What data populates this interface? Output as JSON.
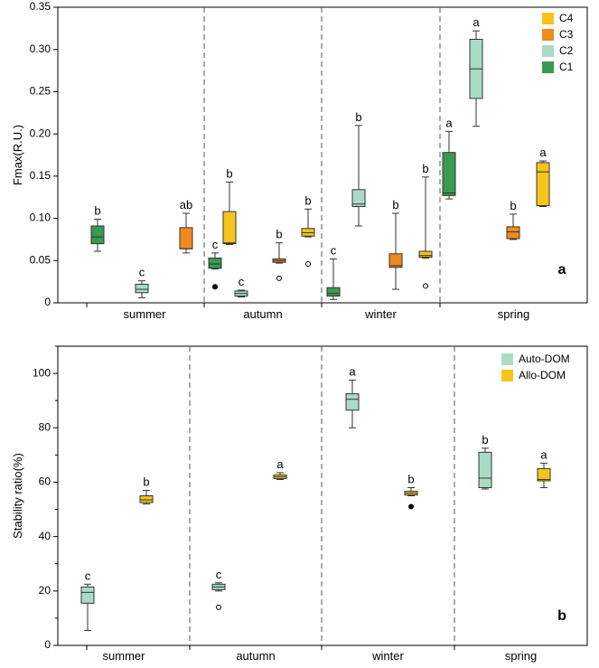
{
  "colors": {
    "C1": "#3a9a4f",
    "C2": "#a9dcc5",
    "C3": "#f08a1e",
    "C4": "#f7c41b",
    "Auto-DOM": "#a9dcc5",
    "Allo-DOM": "#f7c41b"
  },
  "chart_data": [
    {
      "type": "box",
      "panel_label": "a",
      "ylabel": "Fmax(R.U.)",
      "xlabel": "",
      "ylim": [
        0,
        0.35
      ],
      "yticks": [
        "0",
        "0.05",
        "0.10",
        "0.15",
        "0.20",
        "0.25",
        "0.30",
        "0.35"
      ],
      "categories": [
        "summer",
        "autumn",
        "winter",
        "spring"
      ],
      "legend": {
        "position": "top-right",
        "entries": [
          "C4",
          "C3",
          "C2",
          "C1"
        ]
      },
      "series": [
        {
          "name": "C1",
          "values": [
            {
              "whislo": 0.061,
              "q1": 0.07,
              "med": 0.078,
              "q3": 0.091,
              "whishi": 0.099,
              "fliers": [],
              "label": "b"
            },
            {
              "whislo": 0.04,
              "q1": 0.041,
              "med": 0.046,
              "q3": 0.053,
              "whishi": 0.059,
              "fliers": [
                {
                  "v": 0.019,
                  "filled": true
                }
              ],
              "label": "c"
            },
            {
              "whislo": 0.004,
              "q1": 0.008,
              "med": 0.011,
              "q3": 0.018,
              "whishi": 0.052,
              "fliers": [],
              "label": "c"
            },
            {
              "whislo": 0.123,
              "q1": 0.127,
              "med": 0.13,
              "q3": 0.178,
              "whishi": 0.203,
              "fliers": [],
              "label": "a"
            }
          ]
        },
        {
          "name": "C2",
          "values": [
            {
              "whislo": 0.006,
              "q1": 0.012,
              "med": 0.016,
              "q3": 0.022,
              "whishi": 0.026,
              "fliers": [],
              "label": "c"
            },
            {
              "whislo": 0.007,
              "q1": 0.008,
              "med": 0.011,
              "q3": 0.014,
              "whishi": 0.015,
              "fliers": [],
              "label": "c"
            },
            {
              "whislo": 0.091,
              "q1": 0.114,
              "med": 0.117,
              "q3": 0.134,
              "whishi": 0.21,
              "fliers": [],
              "label": "b"
            },
            {
              "whislo": 0.209,
              "q1": 0.242,
              "med": 0.277,
              "q3": 0.312,
              "whishi": 0.322,
              "fliers": [],
              "label": "a"
            }
          ]
        },
        {
          "name": "C3",
          "values": [
            {
              "whislo": 0.059,
              "q1": 0.064,
              "med": 0.064,
              "q3": 0.089,
              "whishi": 0.106,
              "fliers": [],
              "label": "ab"
            },
            {
              "whislo": 0.047,
              "q1": 0.048,
              "med": 0.05,
              "q3": 0.052,
              "whishi": 0.071,
              "fliers": [
                {
                  "v": 0.029,
                  "filled": false
                }
              ],
              "label": "b"
            },
            {
              "whislo": 0.016,
              "q1": 0.042,
              "med": 0.044,
              "q3": 0.058,
              "whishi": 0.106,
              "fliers": [],
              "label": "b"
            },
            {
              "whislo": 0.075,
              "q1": 0.076,
              "med": 0.084,
              "q3": 0.09,
              "whishi": 0.105,
              "fliers": [],
              "label": "b"
            }
          ]
        },
        {
          "name": "C4",
          "values": [
            {
              "whislo": 0.069,
              "q1": 0.07,
              "med": 0.071,
              "q3": 0.108,
              "whishi": 0.143,
              "fliers": [],
              "label": "b"
            },
            {
              "whislo": 0.078,
              "q1": 0.079,
              "med": 0.083,
              "q3": 0.088,
              "whishi": 0.111,
              "fliers": [
                {
                  "v": 0.046,
                  "filled": false
                }
              ],
              "label": "b"
            },
            {
              "whislo": 0.053,
              "q1": 0.054,
              "med": 0.056,
              "q3": 0.061,
              "whishi": 0.149,
              "fliers": [
                {
                  "v": 0.02,
                  "filled": false
                }
              ],
              "label": "b"
            },
            {
              "whislo": 0.114,
              "q1": 0.115,
              "med": 0.155,
              "q3": 0.166,
              "whishi": 0.168,
              "fliers": [],
              "label": "a"
            }
          ]
        }
      ]
    },
    {
      "type": "box",
      "panel_label": "b",
      "ylabel": "Stability ratio(%)",
      "xlabel": "",
      "ylim": [
        0,
        110
      ],
      "yticks": [
        "0",
        "20",
        "40",
        "60",
        "80",
        "100"
      ],
      "categories": [
        "summer",
        "autumn",
        "winter",
        "spring"
      ],
      "legend": {
        "position": "top-right",
        "entries": [
          "Auto-DOM",
          "Allo-DOM"
        ]
      },
      "series": [
        {
          "name": "Auto-DOM",
          "values": [
            {
              "whislo": 5.5,
              "q1": 15.5,
              "med": 19.5,
              "q3": 21.5,
              "whishi": 22.5,
              "fliers": [],
              "label": "c"
            },
            {
              "whislo": 20.0,
              "q1": 20.5,
              "med": 21.5,
              "q3": 22.5,
              "whishi": 23.0,
              "fliers": [
                {
                  "v": 14.0,
                  "filled": false
                }
              ],
              "label": "c"
            },
            {
              "whislo": 80.0,
              "q1": 86.5,
              "med": 90.5,
              "q3": 92.5,
              "whishi": 97.5,
              "fliers": [],
              "label": "a"
            },
            {
              "whislo": 57.5,
              "q1": 58.0,
              "med": 61.5,
              "q3": 71.0,
              "whishi": 72.5,
              "fliers": [],
              "label": "b"
            }
          ]
        },
        {
          "name": "Allo-DOM",
          "values": [
            {
              "whislo": 52.0,
              "q1": 52.5,
              "med": 53.5,
              "q3": 55.0,
              "whishi": 57.0,
              "fliers": [],
              "label": "b"
            },
            {
              "whislo": 61.0,
              "q1": 61.3,
              "med": 62.0,
              "q3": 62.7,
              "whishi": 63.5,
              "fliers": [],
              "label": "a"
            },
            {
              "whislo": 55.0,
              "q1": 55.3,
              "med": 56.0,
              "q3": 56.7,
              "whishi": 58.0,
              "fliers": [
                {
                  "v": 51.0,
                  "filled": true
                }
              ],
              "label": "b"
            },
            {
              "whislo": 58.0,
              "q1": 60.5,
              "med": 61.0,
              "q3": 65.0,
              "whishi": 67.0,
              "fliers": [],
              "label": "a"
            }
          ]
        }
      ]
    }
  ]
}
